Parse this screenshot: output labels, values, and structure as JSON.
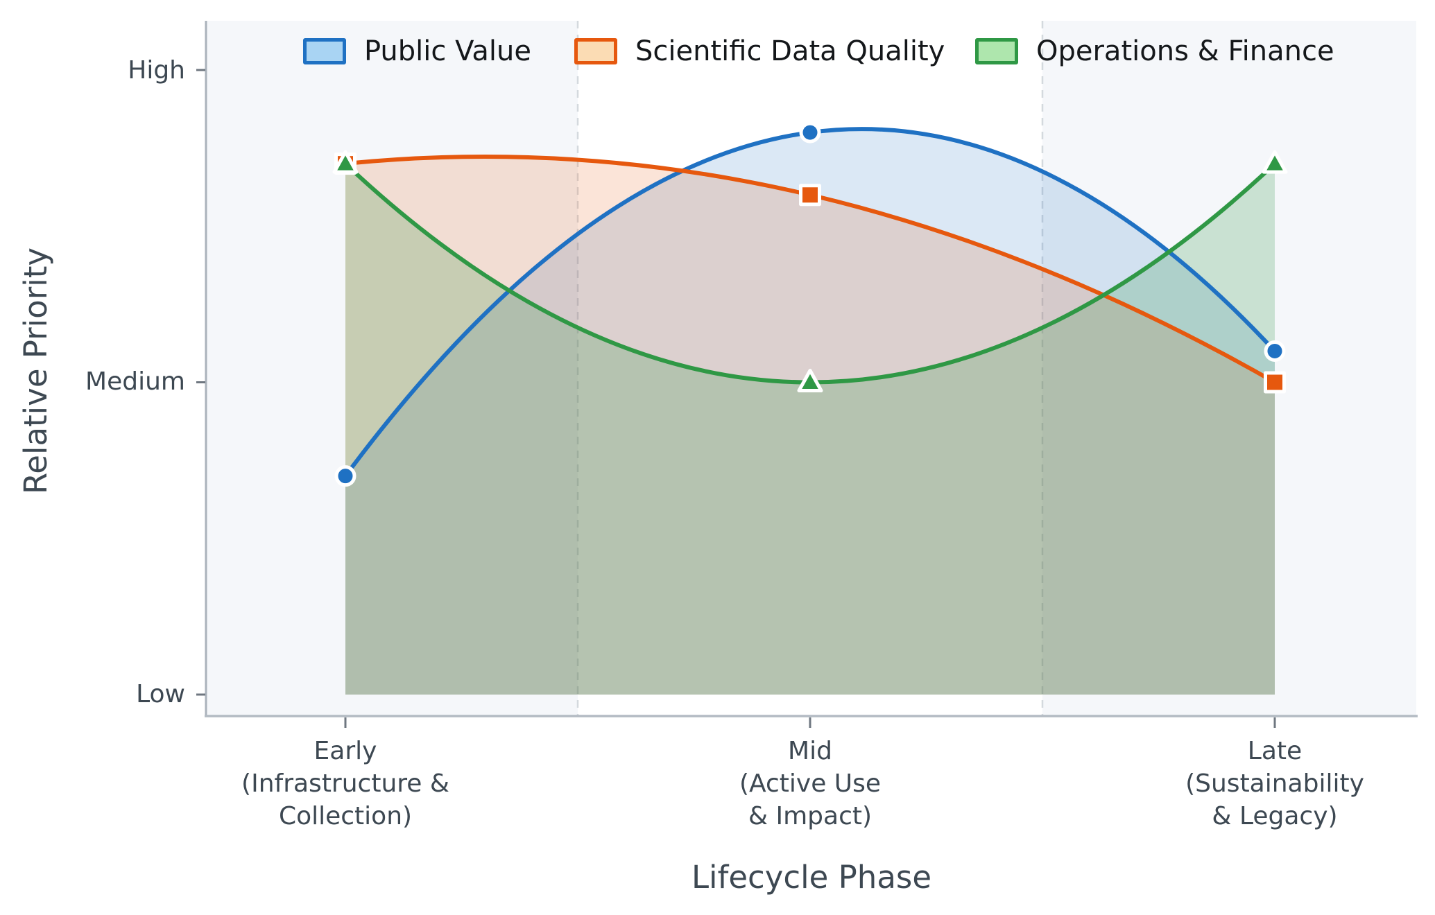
{
  "figure": {
    "xlabel": "Lifecycle Phase",
    "ylabel": "Relative Priority",
    "background_color": "#ffffff",
    "phase_band_color": "#f5f7fa",
    "separator_color": "#d4d9de",
    "axis_text_color": "#3d4852",
    "legend_text_color": "#14171a",
    "left_spine_color": "#aab2bb",
    "bottom_spine_color": "#b3bbc3",
    "tick_mark_color": "#6f7780"
  },
  "chart_data": {
    "type": "line",
    "subtype": "smooth quadratic spline curves with markers and translucent area fill down to the Low baseline",
    "title": "",
    "xlabel": "Lifecycle Phase",
    "ylabel": "Relative Priority",
    "x_categories": [
      {
        "label": "Early (Infrastructure & Collection)",
        "line1": "Early",
        "line2": "(Infrastructure &",
        "line3": "Collection)"
      },
      {
        "label": "Mid (Active Use & Impact)",
        "line1": "Mid",
        "line2": "(Active Use",
        "line3": "& Impact)"
      },
      {
        "label": "Late (Sustainability & Legacy)",
        "line1": "Late",
        "line2": "(Sustainability",
        "line3": "& Legacy)"
      }
    ],
    "y_ticks": [
      {
        "label": "High",
        "value": 2
      },
      {
        "label": "Medium",
        "value": 1
      },
      {
        "label": "Low",
        "value": 0
      }
    ],
    "value_scale": "0 = Low, 1 = Medium, 2 = High",
    "ylim": [
      -0.07,
      2.16
    ],
    "grid": "two vertical dashed separators at phase boundaries; Early and Late phase regions shaded with light band color",
    "legend_position": "top inside plot, horizontal row",
    "series": [
      {
        "name": "Public Value",
        "color": "#1f71c3",
        "legend_fill": "#a9d4f3",
        "marker": "circle",
        "fill_opacity": 0.16,
        "values": [
          0.7,
          1.8,
          1.1
        ]
      },
      {
        "name": "Scientific Data Quality",
        "color": "#e6580e",
        "legend_fill": "#fbdcb4",
        "marker": "square",
        "fill_opacity": 0.16,
        "values": [
          1.7,
          1.6,
          1.0
        ]
      },
      {
        "name": "Operations & Finance",
        "color": "#2f9845",
        "legend_fill": "#aee6ad",
        "marker": "triangle",
        "fill_opacity": 0.22,
        "values": [
          1.7,
          1.0,
          1.7
        ]
      }
    ]
  }
}
